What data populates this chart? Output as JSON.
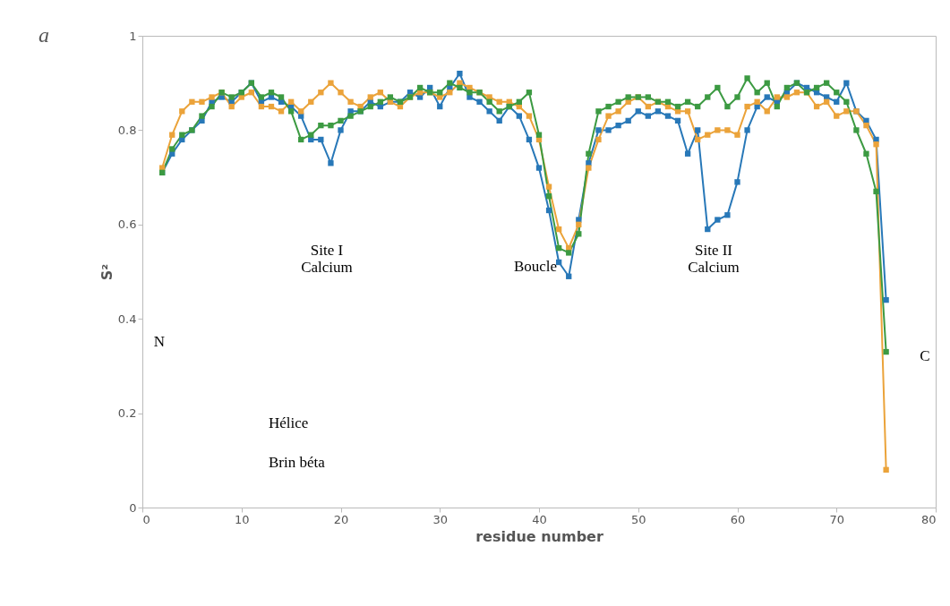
{
  "chart_data": {
    "type": "line",
    "xlabel": "residue number",
    "ylabel": "S²",
    "x": [
      2,
      3,
      4,
      5,
      6,
      7,
      8,
      9,
      10,
      11,
      12,
      13,
      14,
      15,
      16,
      17,
      18,
      19,
      20,
      21,
      22,
      23,
      24,
      25,
      26,
      27,
      28,
      29,
      30,
      31,
      32,
      33,
      34,
      35,
      36,
      37,
      38,
      39,
      40,
      41,
      42,
      43,
      44,
      45,
      46,
      47,
      48,
      49,
      50,
      51,
      52,
      53,
      54,
      55,
      56,
      57,
      58,
      59,
      60,
      61,
      62,
      63,
      64,
      65,
      66,
      67,
      68,
      69,
      70,
      71,
      72,
      73,
      74,
      75
    ],
    "series": [
      {
        "color": "#2878b8",
        "values": [
          0.71,
          0.75,
          0.78,
          0.8,
          0.82,
          0.86,
          0.87,
          0.86,
          0.88,
          0.9,
          0.86,
          0.87,
          0.86,
          0.85,
          0.83,
          0.78,
          0.78,
          0.73,
          0.8,
          0.84,
          0.84,
          0.86,
          0.85,
          0.86,
          0.86,
          0.88,
          0.87,
          0.89,
          0.85,
          0.89,
          0.92,
          0.87,
          0.86,
          0.84,
          0.82,
          0.85,
          0.83,
          0.78,
          0.72,
          0.63,
          0.52,
          0.49,
          0.61,
          0.73,
          0.8,
          0.8,
          0.81,
          0.82,
          0.84,
          0.83,
          0.84,
          0.83,
          0.82,
          0.75,
          0.8,
          0.59,
          0.61,
          0.62,
          0.69,
          0.8,
          0.85,
          0.87,
          0.86,
          0.88,
          0.9,
          0.89,
          0.88,
          0.87,
          0.86,
          0.9,
          0.84,
          0.82,
          0.78,
          0.44
        ]
      },
      {
        "color": "#eba33a",
        "values": [
          0.72,
          0.79,
          0.84,
          0.86,
          0.86,
          0.87,
          0.88,
          0.85,
          0.87,
          0.88,
          0.85,
          0.85,
          0.84,
          0.86,
          0.84,
          0.86,
          0.88,
          0.9,
          0.88,
          0.86,
          0.85,
          0.87,
          0.88,
          0.86,
          0.85,
          0.87,
          0.88,
          0.88,
          0.87,
          0.88,
          0.9,
          0.89,
          0.88,
          0.87,
          0.86,
          0.86,
          0.85,
          0.83,
          0.78,
          0.68,
          0.59,
          0.55,
          0.6,
          0.72,
          0.78,
          0.83,
          0.84,
          0.86,
          0.87,
          0.85,
          0.86,
          0.85,
          0.84,
          0.84,
          0.78,
          0.79,
          0.8,
          0.8,
          0.79,
          0.85,
          0.86,
          0.84,
          0.87,
          0.87,
          0.88,
          0.88,
          0.85,
          0.86,
          0.83,
          0.84,
          0.84,
          0.81,
          0.77,
          0.08
        ]
      },
      {
        "color": "#3c9a42",
        "values": [
          0.71,
          0.76,
          0.79,
          0.8,
          0.83,
          0.85,
          0.88,
          0.87,
          0.88,
          0.9,
          0.87,
          0.88,
          0.87,
          0.84,
          0.78,
          0.79,
          0.81,
          0.81,
          0.82,
          0.83,
          0.84,
          0.85,
          0.86,
          0.87,
          0.86,
          0.87,
          0.89,
          0.88,
          0.88,
          0.9,
          0.89,
          0.88,
          0.88,
          0.86,
          0.84,
          0.85,
          0.86,
          0.88,
          0.79,
          0.66,
          0.55,
          0.54,
          0.58,
          0.75,
          0.84,
          0.85,
          0.86,
          0.87,
          0.87,
          0.87,
          0.86,
          0.86,
          0.85,
          0.86,
          0.85,
          0.87,
          0.89,
          0.85,
          0.87,
          0.91,
          0.88,
          0.9,
          0.85,
          0.89,
          0.9,
          0.88,
          0.89,
          0.9,
          0.88,
          0.86,
          0.8,
          0.75,
          0.67,
          0.33
        ]
      }
    ],
    "xlim": [
      0,
      80
    ],
    "xticks": [
      0,
      10,
      20,
      30,
      40,
      50,
      60,
      70,
      80
    ],
    "ylim": [
      0,
      1
    ],
    "yticks": [
      0,
      0.2,
      0.4,
      0.6,
      0.8,
      1
    ],
    "marker": "square",
    "grid": false,
    "legend": false,
    "annotations": [
      "a",
      "Site I\nCalcium",
      "Boucle",
      "Site II\nCalcium",
      "N",
      "C",
      "Hélice",
      "Brin béta"
    ]
  }
}
